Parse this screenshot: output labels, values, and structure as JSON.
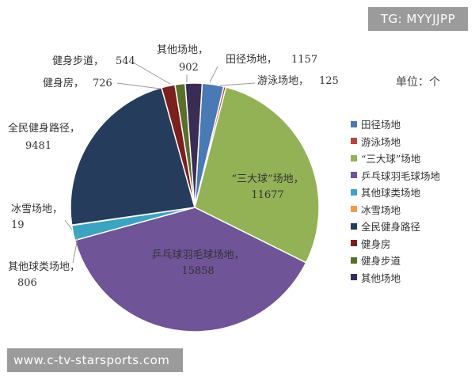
{
  "watermark_top": "TG: MYYJJPP",
  "watermark_bottom": "www.c-tv-starsports.com",
  "unit": "单位：个",
  "colors": {
    "田径场地": "#4a7ab5",
    "游泳场地": "#b5473f",
    "“三大球”场地": "#93b255",
    "乒乓球羽毛球场地": "#6f5497",
    "其他球类场地": "#3aa4c3",
    "冰雪场地": "#f09a4e",
    "全民健身路径": "#263c5c",
    "健身房": "#7b1f1f",
    "健身步道": "#5a6f2a",
    "其他场地": "#3a2d55"
  },
  "chart_data": {
    "type": "pie",
    "unit": "单位：个",
    "slices": [
      {
        "name": "田径场地",
        "value": 1157,
        "label": "田径场地，",
        "value_label": "1157"
      },
      {
        "name": "游泳场地",
        "value": 125,
        "label": "游泳场地，",
        "value_label": "125"
      },
      {
        "name": "“三大球”场地",
        "value": 11677,
        "label": "“三大球”场地，",
        "value_label": "11677"
      },
      {
        "name": "乒乓球羽毛球场地",
        "value": 15858,
        "label": "乒乓球羽毛球场地，",
        "value_label": "15858"
      },
      {
        "name": "其他球类场地",
        "value": 806,
        "label": "其他球类场地，",
        "value_label": "806"
      },
      {
        "name": "冰雪场地",
        "value": 19,
        "label": "冰雪场地，",
        "value_label": "19"
      },
      {
        "name": "全民健身路径",
        "value": 9481,
        "label": "全民健身路径，",
        "value_label": "9481"
      },
      {
        "name": "健身房",
        "value": 726,
        "label": "健身房，",
        "value_label": "726"
      },
      {
        "name": "健身步道",
        "value": 544,
        "label": "健身步道，",
        "value_label": "544"
      },
      {
        "name": "其他场地",
        "value": 902,
        "label": "其他场地，",
        "value_label": "902"
      }
    ],
    "legend": [
      "田径场地",
      "游泳场地",
      "“三大球”场地",
      "乒乓球羽毛球场地",
      "其他球类场地",
      "冰雪场地",
      "全民健身路径",
      "健身房",
      "健身步道",
      "其他场地"
    ],
    "legend_position": "right"
  }
}
